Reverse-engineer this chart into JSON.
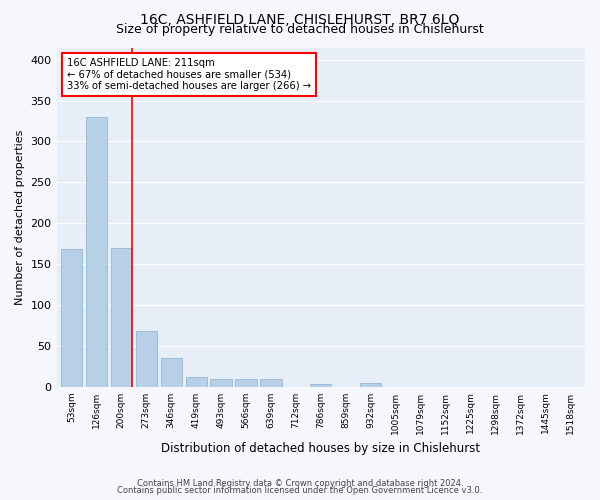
{
  "title1": "16C, ASHFIELD LANE, CHISLEHURST, BR7 6LQ",
  "title2": "Size of property relative to detached houses in Chislehurst",
  "xlabel": "Distribution of detached houses by size in Chislehurst",
  "ylabel": "Number of detached properties",
  "footer1": "Contains HM Land Registry data © Crown copyright and database right 2024.",
  "footer2": "Contains public sector information licensed under the Open Government Licence v3.0.",
  "categories": [
    "53sqm",
    "126sqm",
    "200sqm",
    "273sqm",
    "346sqm",
    "419sqm",
    "493sqm",
    "566sqm",
    "639sqm",
    "712sqm",
    "786sqm",
    "859sqm",
    "932sqm",
    "1005sqm",
    "1079sqm",
    "1152sqm",
    "1225sqm",
    "1298sqm",
    "1372sqm",
    "1445sqm",
    "1518sqm"
  ],
  "values": [
    168,
    330,
    170,
    68,
    35,
    12,
    9,
    9,
    9,
    0,
    3,
    0,
    5,
    0,
    0,
    0,
    0,
    0,
    0,
    0,
    0
  ],
  "bar_color": "#b8cfe8",
  "bar_edge_color": "#8ab0d0",
  "redline_index": 2,
  "annotation_title": "16C ASHFIELD LANE: 211sqm",
  "annotation_line1": "← 67% of detached houses are smaller (534)",
  "annotation_line2": "33% of semi-detached houses are larger (266) →",
  "ylim": [
    0,
    415
  ],
  "yticks": [
    0,
    50,
    100,
    150,
    200,
    250,
    300,
    350,
    400
  ],
  "background_color": "#e8eef8",
  "grid_color": "#ffffff",
  "fig_background": "#f5f7fd",
  "title1_fontsize": 10,
  "title2_fontsize": 9,
  "xlabel_fontsize": 8.5,
  "ylabel_fontsize": 8
}
